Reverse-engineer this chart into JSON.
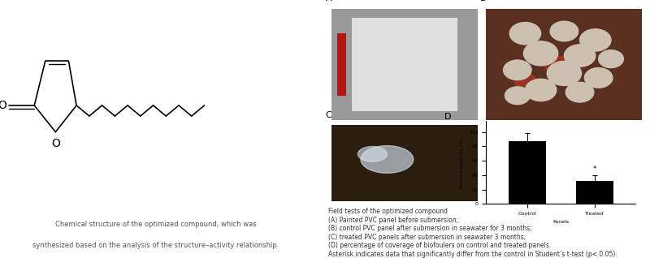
{
  "left_caption_line1": "Chemical structure of the optimized compound, which was",
  "left_caption_line2": "synthesized based on the analysis of the structure–activity relationship.",
  "right_caption_lines": [
    "Field tests of the optimized compound",
    "(A) Painted PVC panel before submersion;",
    "(B) control PVC panel after submersion in seawater for 3 months;",
    "(C) treated PVC panels after submersion in seawater 3 months;",
    "(D) percentage of coverage of biofoulers on control and treated panels.",
    "Asterisk indicates data that significantly differ from the control in Student’s t-test (p< 0.05)."
  ],
  "bar_labels": [
    "Control",
    "Treated"
  ],
  "bar_values": [
    87,
    32
  ],
  "bar_errors": [
    12,
    8
  ],
  "bar_color": "#000000",
  "ylabel": "Area covered by (%)",
  "xlabel": "Panels",
  "ylim": [
    0,
    115
  ],
  "yticks": [
    0,
    20,
    40,
    60,
    80,
    100
  ],
  "panel_D_label": "D",
  "panel_A_label": "A",
  "panel_B_label": "B",
  "panel_C_label": "C",
  "background_color": "#ffffff",
  "caption_fontsize": 6.0,
  "axis_label_fontsize": 4.5,
  "tick_fontsize": 4.5,
  "struct_lw": 1.2
}
